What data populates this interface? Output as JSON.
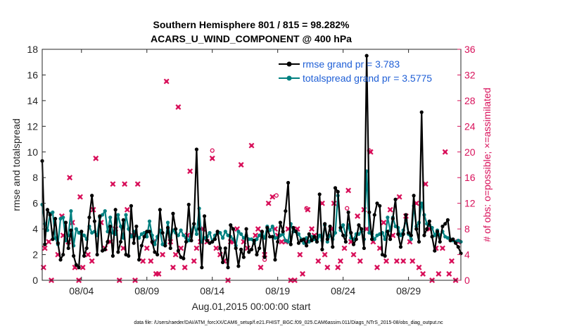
{
  "chart_data": {
    "type": "line",
    "title_line1": "Southern Hemisphere 801 / 815 = 98.282%",
    "title_line2": "ACARS_U_WIND_COMPONENT @ 400 hPa",
    "xlabel": "Aug.01,2015 00:00:00 start",
    "ylabel": "rmse and totalspread",
    "ylabel_right": "# of obs: o=possible; ×=assimilated",
    "footnote": "data file: /Users/raeder/DAI/ATM_forcXX/CAM6_setup/f.e21.FHIST_BGC.f09_025.CAM6assim.011/Diags_NTrS_2015-08/obs_diag_output.nc",
    "xlim": [
      0,
      32
    ],
    "ylim": [
      0,
      18
    ],
    "ylim_right": [
      0,
      36
    ],
    "x_ticks": [
      {
        "day": 3,
        "label": "08/04"
      },
      {
        "day": 8,
        "label": "08/09"
      },
      {
        "day": 13,
        "label": "08/14"
      },
      {
        "day": 18,
        "label": "08/19"
      },
      {
        "day": 23,
        "label": "08/24"
      },
      {
        "day": 28,
        "label": "08/29"
      }
    ],
    "y_ticks": [
      "0",
      "2",
      "4",
      "6",
      "8",
      "10",
      "12",
      "14",
      "16",
      "18"
    ],
    "y_ticks_right": [
      "0",
      "4",
      "8",
      "12",
      "16",
      "20",
      "24",
      "28",
      "32",
      "36"
    ],
    "legend": [
      {
        "name": "rmse grand pr = 3.783",
        "color": "#000000"
      },
      {
        "name": "totalspread grand pr = 3.5775",
        "color": "#008080"
      }
    ],
    "series": [
      {
        "name": "rmse",
        "color": "#000000",
        "values": [
          9.3,
          2.8,
          5.5,
          5.1,
          3.2,
          4.8,
          2.9,
          1.6,
          2.0,
          4.5,
          2.5,
          3.9,
          1.9,
          1.2,
          1.0,
          3.8,
          1.9,
          2.5,
          4.9,
          6.6,
          4.6,
          2.0,
          5.0,
          2.3,
          2.4,
          3.0,
          4.2,
          1.9,
          5.5,
          2.2,
          3.0,
          4.7,
          2.0,
          1.9,
          5.8,
          2.9,
          4.2,
          1.6,
          2.7,
          3.4,
          3.8,
          3.8,
          3.0,
          2.2,
          2.0,
          5.5,
          3.7,
          2.7,
          4.1,
          2.5,
          5.2,
          4.0,
          2.3,
          1.8,
          1.7,
          3.0,
          5.9,
          3.1,
          4.4,
          10.2,
          4.0,
          1.0,
          5.0,
          3.1,
          2.9,
          3.0,
          3.2,
          3.8,
          2.5,
          1.4,
          2.5,
          1.0,
          4.3,
          4.0,
          2.5,
          1.1,
          2.4,
          1.8,
          4.0,
          2.2,
          2.4,
          3.1,
          2.0,
          2.5,
          3.8,
          1.8,
          4.1,
          3.4,
          3.4,
          1.6,
          3.0,
          4.5,
          3.8,
          5.4,
          7.6,
          2.8,
          4.1,
          3.8,
          2.9,
          3.1,
          3.2,
          2.7,
          3.6,
          3.1,
          3.4,
          3.0,
          6.7,
          2.4,
          4.4,
          3.2,
          4.2,
          2.6,
          7.2,
          6.9,
          4.1,
          3.5,
          3.0,
          5.3,
          3.7,
          2.8,
          3.2,
          4.3,
          4.0,
          2.5,
          17.5,
          5.3,
          3.2,
          5.1,
          6.0,
          5.8,
          2.0,
          1.9,
          3.8,
          3.2,
          4.8,
          6.3,
          3.6,
          2.6,
          3.6,
          5.1,
          3.7,
          3.5,
          6.6,
          4.0,
          3.0,
          13.1,
          3.5,
          4.0,
          4.6,
          3.4,
          2.3,
          3.8,
          3.0,
          4.2,
          4.4,
          4.7,
          3.1,
          3.2,
          2.9,
          2.6,
          2.1
        ],
        "marker": "circle"
      },
      {
        "name": "totalspread",
        "color": "#008080",
        "values": [
          5.9,
          4.4,
          3.9,
          5.2,
          5.3,
          3.3,
          2.8,
          4.8,
          4.9,
          3.1,
          3.5,
          5.4,
          2.7,
          4.0,
          3.7,
          3.6,
          3.5,
          3.2,
          4.2,
          3.7,
          3.8,
          3.5,
          4.9,
          5.1,
          5.4,
          3.8,
          4.9,
          3.7,
          3.6,
          5.1,
          4.2,
          3.3,
          5.1,
          4.0,
          3.4,
          3.8,
          3.5,
          3.3,
          3.6,
          3.7,
          3.4,
          4.6,
          3.5,
          2.8,
          3.4,
          3.9,
          2.8,
          2.9,
          4.5,
          3.3,
          3.9,
          3.7,
          3.5,
          3.9,
          3.5,
          3.3,
          3.1,
          3.8,
          4.4,
          3.6,
          5.6,
          3.0,
          3.3,
          3.4,
          3.7,
          3.0,
          3.5,
          3.7,
          3.7,
          3.3,
          3.8,
          3.5,
          3.4,
          3.2,
          2.7,
          3.8,
          3.6,
          3.3,
          3.5,
          3.2,
          3.2,
          2.9,
          3.2,
          3.5,
          3.7,
          3.3,
          4.2,
          3.9,
          4.2,
          3.3,
          3.3,
          3.5,
          3.6,
          3.1,
          3.0,
          4.4,
          3.8,
          3.8,
          3.6,
          3.2,
          2.9,
          3.3,
          3.0,
          3.4,
          3.2,
          3.0,
          3.5,
          3.1,
          4.3,
          3.0,
          3.5,
          3.2,
          3.7,
          6.6,
          3.9,
          4.3,
          3.5,
          4.3,
          3.3,
          3.2,
          3.6,
          3.6,
          3.8,
          3.2,
          8.5,
          3.7,
          3.6,
          3.2,
          3.5,
          3.6,
          3.7,
          3.2,
          4.9,
          3.9,
          4.9,
          4.2,
          4.1,
          3.5,
          3.9,
          4.7,
          3.6,
          3.2,
          5.8,
          4.2,
          4.5,
          6.0,
          5.1,
          4.4,
          4.3,
          4.1,
          3.5,
          3.9,
          3.5,
          3.8,
          3.4,
          3.3,
          3.2,
          3.1,
          3.0,
          3.1,
          3.0
        ],
        "marker": "circle"
      }
    ],
    "obs_possible_outliers": [
      {
        "day": 13.0,
        "count": 20
      },
      {
        "day": 17.0,
        "count": 3
      },
      {
        "day": 17.9,
        "count": 13
      },
      {
        "day": 20.2,
        "count": 11
      },
      {
        "day": 23.3,
        "count": 11
      },
      {
        "day": 25.0,
        "count": 20
      }
    ],
    "obs_assimilated": [
      {
        "day": 0.1,
        "count": 2
      },
      {
        "day": 0.2,
        "count": 5
      },
      {
        "day": 0.5,
        "count": 6
      },
      {
        "day": 0.7,
        "count": 0
      },
      {
        "day": 1.2,
        "count": 4
      },
      {
        "day": 1.5,
        "count": 10
      },
      {
        "day": 1.6,
        "count": 7
      },
      {
        "day": 2.0,
        "count": 6
      },
      {
        "day": 2.1,
        "count": 16
      },
      {
        "day": 2.3,
        "count": 9
      },
      {
        "day": 2.5,
        "count": 2
      },
      {
        "day": 2.8,
        "count": 0
      },
      {
        "day": 2.9,
        "count": 13
      },
      {
        "day": 3.1,
        "count": 2
      },
      {
        "day": 3.5,
        "count": 4
      },
      {
        "day": 3.8,
        "count": 3
      },
      {
        "day": 3.9,
        "count": 11
      },
      {
        "day": 4.1,
        "count": 19
      },
      {
        "day": 4.5,
        "count": 9
      },
      {
        "day": 4.8,
        "count": 5
      },
      {
        "day": 5.2,
        "count": 6
      },
      {
        "day": 5.4,
        "count": 15
      },
      {
        "day": 5.6,
        "count": 8
      },
      {
        "day": 5.9,
        "count": 0
      },
      {
        "day": 6.2,
        "count": 5
      },
      {
        "day": 6.3,
        "count": 15
      },
      {
        "day": 6.5,
        "count": 11
      },
      {
        "day": 6.9,
        "count": 7
      },
      {
        "day": 7.1,
        "count": 0
      },
      {
        "day": 7.3,
        "count": 15
      },
      {
        "day": 7.7,
        "count": 3
      },
      {
        "day": 8.0,
        "count": 5
      },
      {
        "day": 8.3,
        "count": 3
      },
      {
        "day": 8.5,
        "count": 6
      },
      {
        "day": 8.7,
        "count": 1
      },
      {
        "day": 8.9,
        "count": 1
      },
      {
        "day": 9.2,
        "count": 4
      },
      {
        "day": 9.5,
        "count": 31
      },
      {
        "day": 9.8,
        "count": 6
      },
      {
        "day": 10.0,
        "count": 2
      },
      {
        "day": 10.2,
        "count": 4
      },
      {
        "day": 10.4,
        "count": 27
      },
      {
        "day": 10.6,
        "count": 5
      },
      {
        "day": 10.9,
        "count": 2
      },
      {
        "day": 11.1,
        "count": 7
      },
      {
        "day": 11.3,
        "count": 17
      },
      {
        "day": 11.6,
        "count": 3
      },
      {
        "day": 11.8,
        "count": 5
      },
      {
        "day": 12.1,
        "count": 6
      },
      {
        "day": 12.3,
        "count": 8
      },
      {
        "day": 12.6,
        "count": 6
      },
      {
        "day": 13.0,
        "count": 19
      },
      {
        "day": 13.3,
        "count": 5
      },
      {
        "day": 13.6,
        "count": 4
      },
      {
        "day": 13.9,
        "count": 3
      },
      {
        "day": 14.2,
        "count": 0
      },
      {
        "day": 14.4,
        "count": 6
      },
      {
        "day": 14.6,
        "count": 6
      },
      {
        "day": 14.9,
        "count": 8
      },
      {
        "day": 15.2,
        "count": 18
      },
      {
        "day": 15.4,
        "count": 6
      },
      {
        "day": 15.7,
        "count": 5
      },
      {
        "day": 16.0,
        "count": 21
      },
      {
        "day": 16.3,
        "count": 7
      },
      {
        "day": 16.5,
        "count": 8
      },
      {
        "day": 16.7,
        "count": 2
      },
      {
        "day": 17.0,
        "count": 4
      },
      {
        "day": 17.3,
        "count": 12
      },
      {
        "day": 17.6,
        "count": 13
      },
      {
        "day": 17.8,
        "count": 8
      },
      {
        "day": 18.0,
        "count": 7
      },
      {
        "day": 18.3,
        "count": 6
      },
      {
        "day": 18.6,
        "count": 6
      },
      {
        "day": 18.8,
        "count": 8
      },
      {
        "day": 19.0,
        "count": 0
      },
      {
        "day": 19.3,
        "count": 0
      },
      {
        "day": 19.5,
        "count": 8
      },
      {
        "day": 19.7,
        "count": 4
      },
      {
        "day": 19.9,
        "count": 1
      },
      {
        "day": 20.1,
        "count": 6
      },
      {
        "day": 20.3,
        "count": 11
      },
      {
        "day": 20.6,
        "count": 8
      },
      {
        "day": 20.8,
        "count": 7
      },
      {
        "day": 21.1,
        "count": 3
      },
      {
        "day": 21.4,
        "count": 12
      },
      {
        "day": 21.6,
        "count": 4
      },
      {
        "day": 21.8,
        "count": 2
      },
      {
        "day": 22.1,
        "count": 8
      },
      {
        "day": 22.3,
        "count": 12
      },
      {
        "day": 22.6,
        "count": 2
      },
      {
        "day": 22.8,
        "count": 3
      },
      {
        "day": 23.1,
        "count": 5
      },
      {
        "day": 23.4,
        "count": 14
      },
      {
        "day": 23.6,
        "count": 6
      },
      {
        "day": 23.8,
        "count": 4
      },
      {
        "day": 24.1,
        "count": 10
      },
      {
        "day": 24.3,
        "count": 3
      },
      {
        "day": 24.6,
        "count": 11
      },
      {
        "day": 24.8,
        "count": 8
      },
      {
        "day": 25.1,
        "count": 20
      },
      {
        "day": 25.3,
        "count": 6
      },
      {
        "day": 25.6,
        "count": 2
      },
      {
        "day": 25.8,
        "count": 5
      },
      {
        "day": 26.1,
        "count": 9
      },
      {
        "day": 26.3,
        "count": 3
      },
      {
        "day": 26.6,
        "count": 11
      },
      {
        "day": 26.8,
        "count": 7
      },
      {
        "day": 27.1,
        "count": 3
      },
      {
        "day": 27.3,
        "count": 13
      },
      {
        "day": 27.6,
        "count": 3
      },
      {
        "day": 27.8,
        "count": 10
      },
      {
        "day": 28.1,
        "count": 6
      },
      {
        "day": 28.3,
        "count": 3
      },
      {
        "day": 28.6,
        "count": 12
      },
      {
        "day": 28.8,
        "count": 2
      },
      {
        "day": 29.1,
        "count": 1
      },
      {
        "day": 29.3,
        "count": 15
      },
      {
        "day": 29.6,
        "count": 8
      },
      {
        "day": 29.8,
        "count": 0
      },
      {
        "day": 30.1,
        "count": 5
      },
      {
        "day": 30.3,
        "count": 1
      },
      {
        "day": 30.6,
        "count": 5
      },
      {
        "day": 30.8,
        "count": 20
      },
      {
        "day": 31.1,
        "count": 1
      },
      {
        "day": 31.3,
        "count": 3
      },
      {
        "day": 31.6,
        "count": 0
      },
      {
        "day": 31.8,
        "count": 6
      }
    ]
  },
  "colors": {
    "rmse": "#000000",
    "totalspread": "#008080",
    "obs": "#d8105a",
    "legend_text": "#1f5fd6",
    "axis": "#262626"
  }
}
